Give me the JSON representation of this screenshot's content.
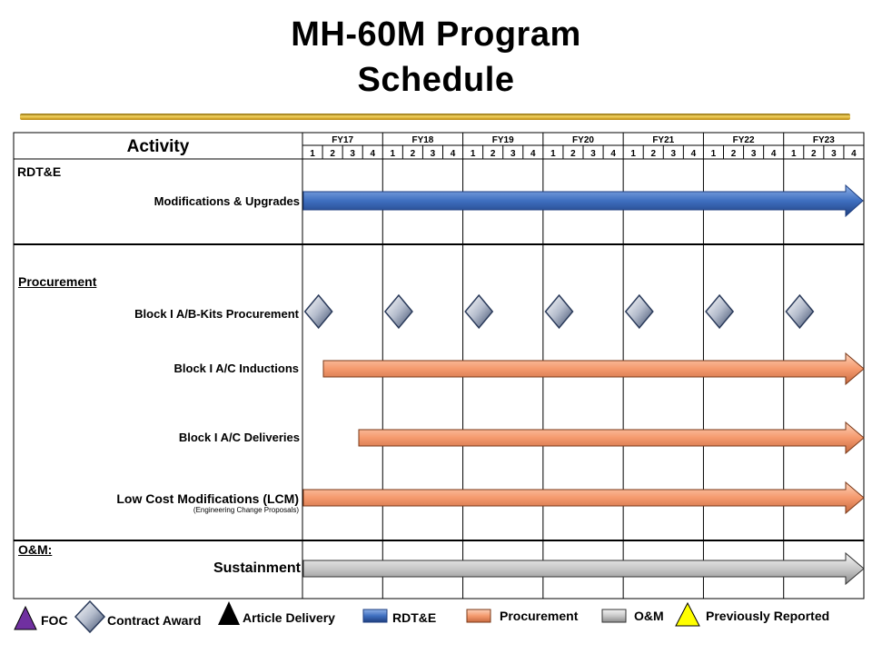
{
  "title": {
    "line1": "MH-60M Program",
    "line2": "Schedule"
  },
  "header": {
    "activity": "Activity"
  },
  "fiscal_years": [
    "FY17",
    "FY18",
    "FY19",
    "FY20",
    "FY21",
    "FY22",
    "FY23"
  ],
  "quarters": [
    "1",
    "2",
    "3",
    "4"
  ],
  "sections": {
    "rdte": "RDT&E",
    "procurement": "Procurement",
    "om": "O&M:"
  },
  "activities": {
    "mods": "Modifications & Upgrades",
    "kits": "Block I A/B-Kits  Procurement",
    "inductions": "Block I A/C Inductions",
    "deliveries": "Block I A/C Deliveries",
    "lcm": "Low Cost Modifications (LCM)",
    "lcm_sub": "(Engineering Change Proposals)",
    "sustain": "Sustainment"
  },
  "legend": {
    "foc": "FOC",
    "contract": "Contract Award",
    "article": "Article  Delivery",
    "rdte": "RDT&E",
    "procurement": "Procurement",
    "om": "O&M",
    "previous": "Previously Reported"
  },
  "colors": {
    "rdte": "#3f6fc0",
    "procurement": "#f59a6e",
    "om": "#c8c8c8",
    "foc": "#7030a0",
    "previous": "#ffff00",
    "title_rule": "#c9a227"
  }
}
